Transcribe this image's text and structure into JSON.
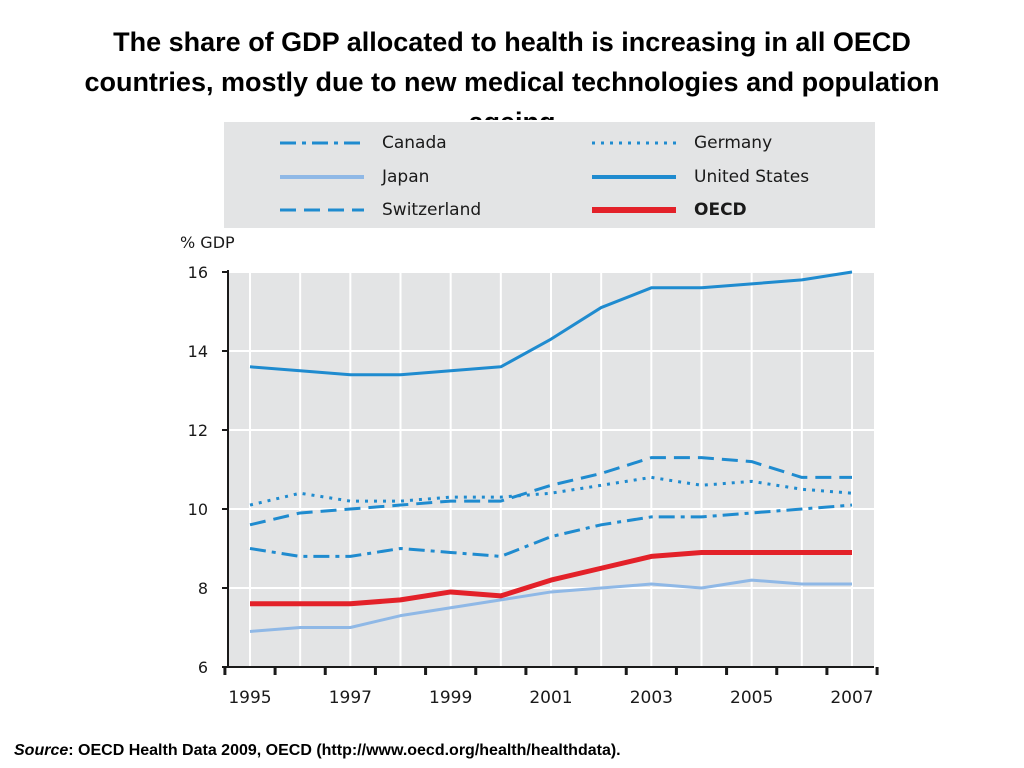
{
  "title_lines": [
    "The share of GDP allocated to health is increasing in all OECD",
    "countries, mostly due to new medical technologies and population",
    "ageing"
  ],
  "source": {
    "label": "Source",
    "text": ": OECD Health Data 2009, OECD (http://www.oecd.org/health/healthdata)."
  },
  "colors": {
    "blue": "#1f8bcf",
    "light_blue": "#8fb8e6",
    "red": "#e32129",
    "panel_bg": "#e3e4e5"
  },
  "chart_data": {
    "type": "line",
    "ylabel": "% GDP",
    "xlabel": "",
    "ylim": [
      6,
      16
    ],
    "xlim": [
      1995,
      2007
    ],
    "y_ticks": [
      6,
      8,
      10,
      12,
      14,
      16
    ],
    "x_tick_labels": [
      1995,
      1997,
      1999,
      2001,
      2003,
      2005,
      2007
    ],
    "grid": true,
    "legend_position": "top",
    "x": [
      1995,
      1996,
      1997,
      1998,
      1999,
      2000,
      2001,
      2002,
      2003,
      2004,
      2005,
      2006,
      2007
    ],
    "series": [
      {
        "name": "Canada",
        "style": "dash-dot",
        "color": "#1f8bcf",
        "values": [
          9.0,
          8.8,
          8.8,
          9.0,
          8.9,
          8.8,
          9.3,
          9.6,
          9.8,
          9.8,
          9.9,
          10.0,
          10.1
        ]
      },
      {
        "name": "Germany",
        "style": "dotted",
        "color": "#1f8bcf",
        "values": [
          10.1,
          10.4,
          10.2,
          10.2,
          10.3,
          10.3,
          10.4,
          10.6,
          10.8,
          10.6,
          10.7,
          10.5,
          10.4
        ]
      },
      {
        "name": "Japan",
        "style": "solid-light",
        "color": "#8fb8e6",
        "values": [
          6.9,
          7.0,
          7.0,
          7.3,
          7.5,
          7.7,
          7.9,
          8.0,
          8.1,
          8.0,
          8.2,
          8.1,
          8.1
        ]
      },
      {
        "name": "United States",
        "style": "solid",
        "color": "#1f8bcf",
        "values": [
          13.6,
          13.5,
          13.4,
          13.4,
          13.5,
          13.6,
          14.3,
          15.1,
          15.6,
          15.6,
          15.7,
          15.8,
          16.0
        ]
      },
      {
        "name": "Switzerland",
        "style": "dashed",
        "color": "#1f8bcf",
        "values": [
          9.6,
          9.9,
          10.0,
          10.1,
          10.2,
          10.2,
          10.6,
          10.9,
          11.3,
          11.3,
          11.2,
          10.8,
          10.8
        ]
      },
      {
        "name": "OECD",
        "style": "bold-red",
        "color": "#e32129",
        "values": [
          7.6,
          7.6,
          7.6,
          7.7,
          7.9,
          7.8,
          8.2,
          8.5,
          8.8,
          8.9,
          8.9,
          8.9,
          8.9
        ]
      }
    ]
  }
}
